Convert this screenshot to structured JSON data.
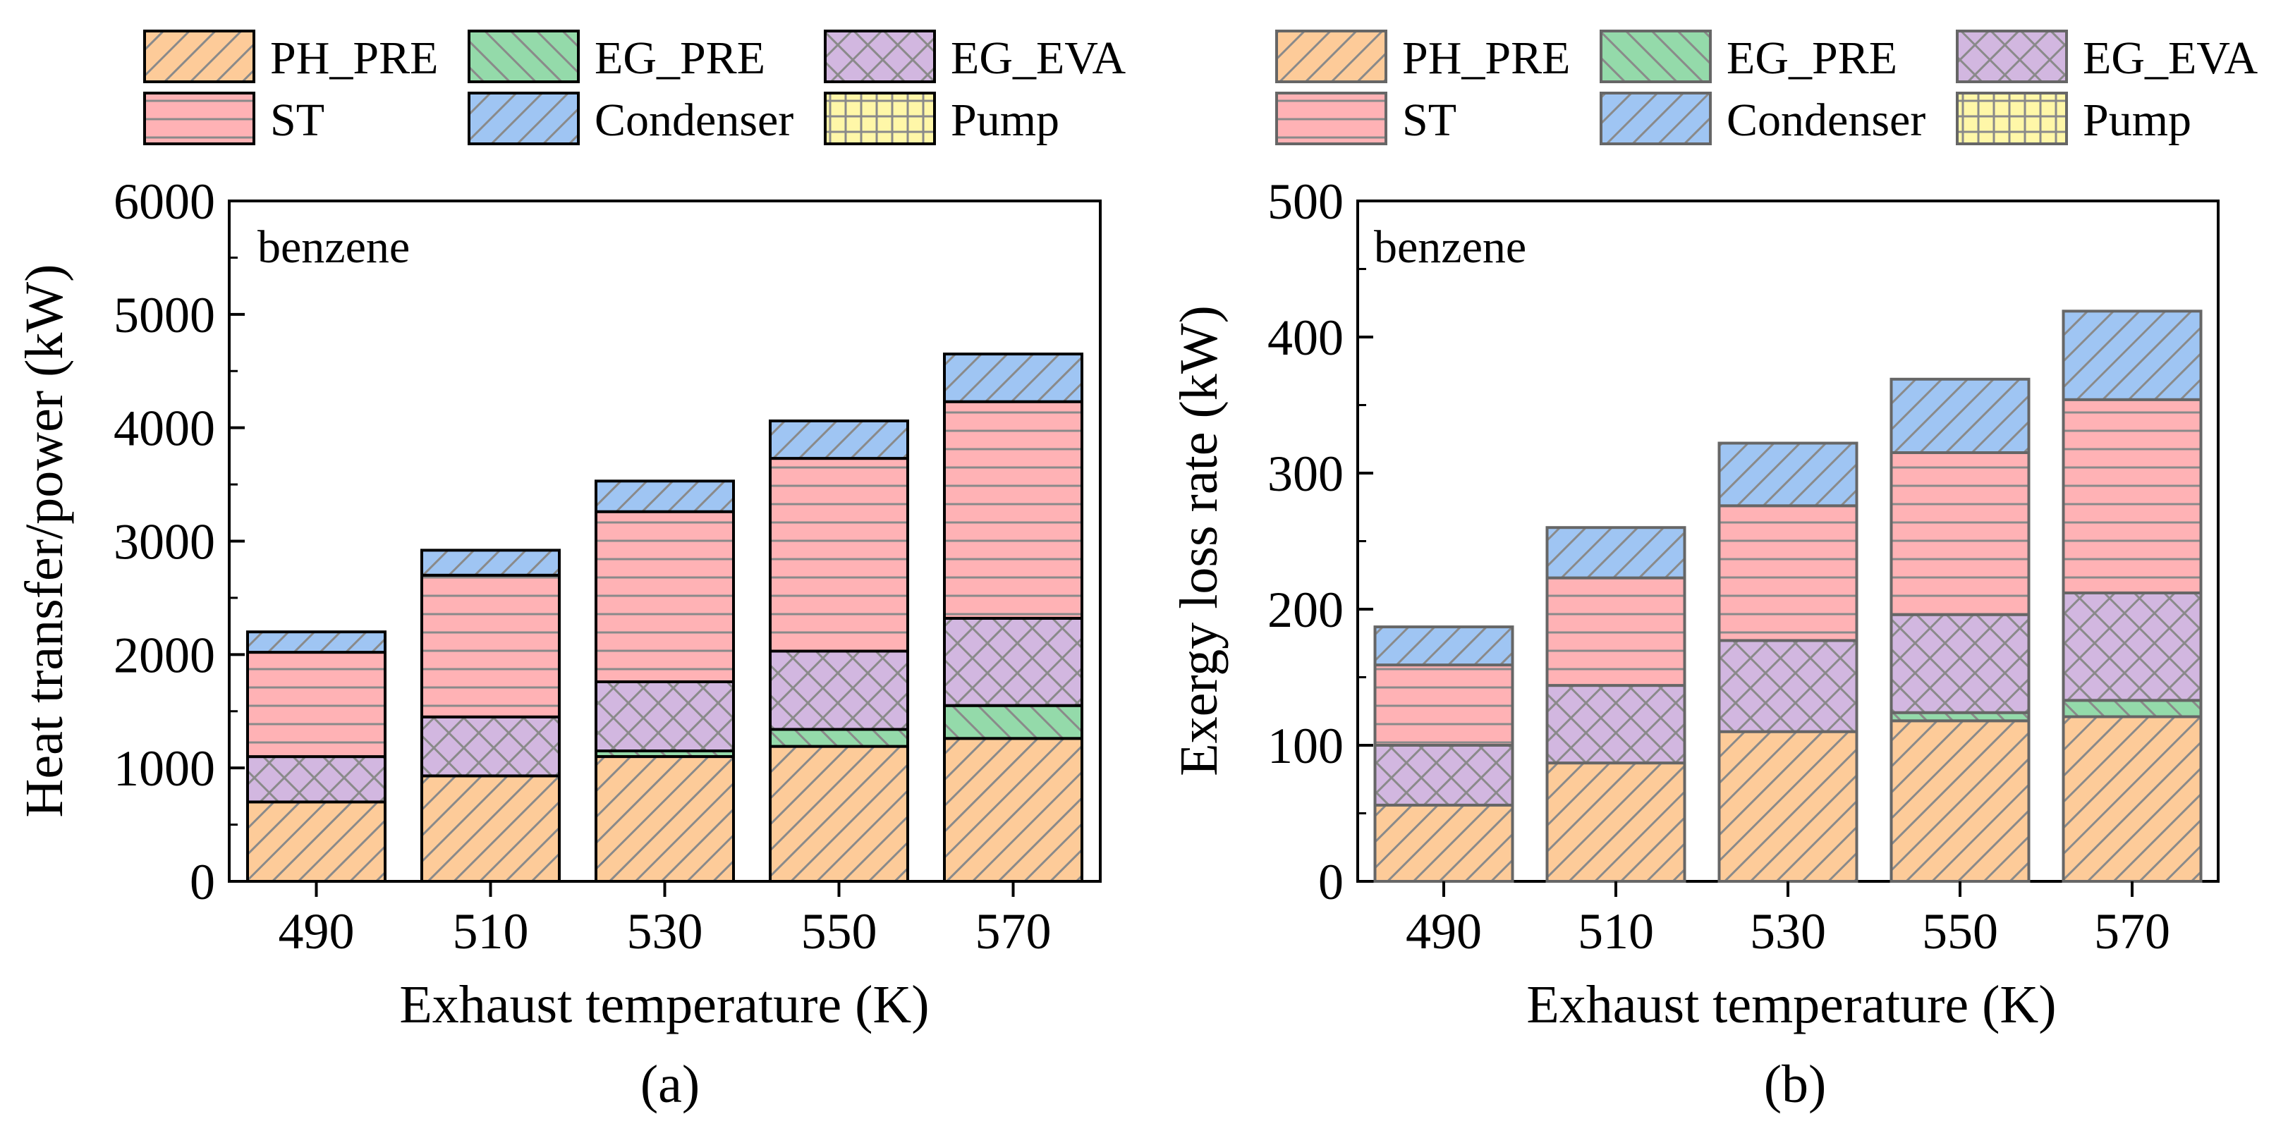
{
  "figure": {
    "panels": [
      {
        "caption": "(a)",
        "annotation": "benzene",
        "legend": [
          "PH_PRE",
          "EG_PRE",
          "EG_EVA",
          "ST",
          "Condenser",
          "Pump"
        ]
      },
      {
        "caption": "(b)",
        "annotation": "benzene",
        "legend": [
          "PH_PRE",
          "EG_PRE",
          "EG_EVA",
          "ST",
          "Condenser",
          "Pump"
        ]
      }
    ]
  },
  "styles": {
    "PH_PRE": {
      "fill": "#FDCB99",
      "pattern": "diagonal"
    },
    "EG_PRE": {
      "fill": "#94DAAA",
      "pattern": "backdiagonal"
    },
    "EG_EVA": {
      "fill": "#D2B7E0",
      "pattern": "crosshatch"
    },
    "ST": {
      "fill": "#FFB2B5",
      "pattern": "horizontal"
    },
    "Condenser": {
      "fill": "#9FC5F3",
      "pattern": "diagonal"
    },
    "Pump": {
      "fill": "#FFF7A8",
      "pattern": "grid"
    }
  },
  "chart_data": [
    {
      "type": "bar",
      "stacked": true,
      "categories": [
        "490",
        "510",
        "530",
        "550",
        "570"
      ],
      "xlabel": "Exhaust temperature (K)",
      "ylabel": "Heat transfer/power (kW)",
      "ylim": [
        0,
        6000
      ],
      "yticks": [
        "0",
        "1000",
        "2000",
        "3000",
        "4000",
        "5000",
        "6000"
      ],
      "series": [
        {
          "name": "PH_PRE",
          "values": [
            700,
            930,
            1100,
            1190,
            1260
          ]
        },
        {
          "name": "EG_PRE",
          "values": [
            0,
            0,
            50,
            150,
            290
          ]
        },
        {
          "name": "EG_EVA",
          "values": [
            400,
            520,
            610,
            690,
            770
          ]
        },
        {
          "name": "ST",
          "values": [
            920,
            1250,
            1500,
            1700,
            1910
          ]
        },
        {
          "name": "Condenser",
          "values": [
            180,
            220,
            270,
            330,
            420
          ]
        },
        {
          "name": "Pump",
          "values": [
            0,
            0,
            0,
            0,
            0
          ]
        }
      ]
    },
    {
      "type": "bar",
      "stacked": true,
      "categories": [
        "490",
        "510",
        "530",
        "550",
        "570"
      ],
      "xlabel": "Exhaust temperature (K)",
      "ylabel": "Exergy loss rate (kW)",
      "ylim": [
        0,
        500
      ],
      "yticks": [
        "0",
        "100",
        "200",
        "300",
        "400",
        "500"
      ],
      "series": [
        {
          "name": "PH_PRE",
          "values": [
            56,
            87,
            110,
            118,
            121
          ]
        },
        {
          "name": "EG_PRE",
          "values": [
            0,
            0,
            0,
            6,
            12
          ]
        },
        {
          "name": "EG_EVA",
          "values": [
            44,
            57,
            67,
            72,
            79
          ]
        },
        {
          "name": "ST",
          "values": [
            59,
            79,
            99,
            119,
            142
          ]
        },
        {
          "name": "Condenser",
          "values": [
            28,
            37,
            46,
            54,
            65
          ]
        },
        {
          "name": "Pump",
          "values": [
            0,
            0,
            0,
            0,
            0
          ]
        }
      ]
    }
  ]
}
